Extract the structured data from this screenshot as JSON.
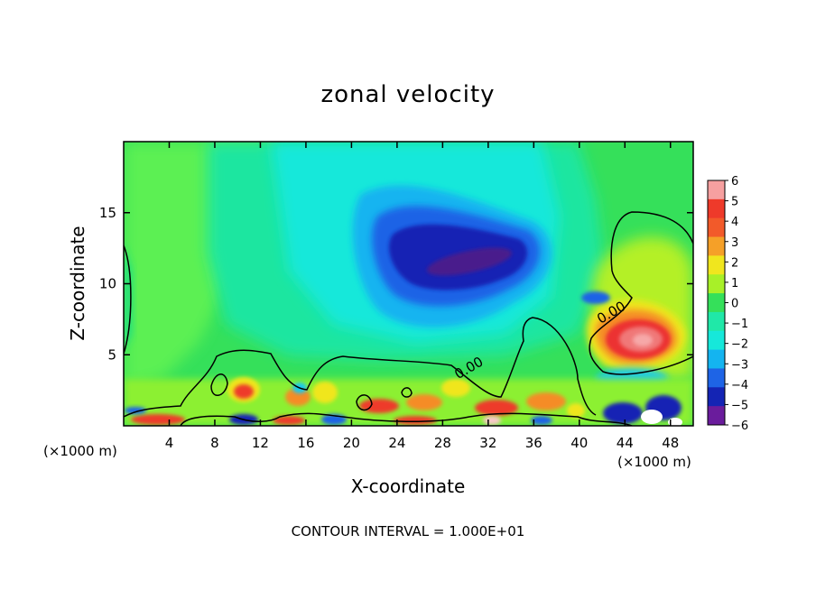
{
  "chart_data": {
    "type": "heatmap",
    "title": "zonal velocity",
    "xlabel": "X-coordinate",
    "ylabel": "Z-coordinate",
    "x_unit_left": "(×1000 m)",
    "x_unit_right": "(×1000 m)",
    "footer": "CONTOUR INTERVAL = 1.000E+01",
    "x_ticks": [
      4,
      8,
      12,
      16,
      20,
      24,
      28,
      32,
      36,
      40,
      44,
      48
    ],
    "y_ticks": [
      5,
      10,
      15
    ],
    "xlim": [
      0,
      50
    ],
    "ylim": [
      0,
      20
    ],
    "colorbar": {
      "labels": [
        "6",
        "5",
        "4",
        "3",
        "2",
        "1",
        "0",
        "−1",
        "−2",
        "−3",
        "−4",
        "−5",
        "−6"
      ],
      "range": [
        -6,
        6
      ]
    },
    "contour_labels": [
      {
        "text": "0.00",
        "x": 30.5,
        "y": 3.8
      },
      {
        "text": "0.00",
        "x": 43.0,
        "y": 7.7
      }
    ],
    "features": [
      {
        "desc": "negative core",
        "x": 30.5,
        "y": 11.2,
        "value": -5.5
      },
      {
        "desc": "positive core",
        "x": 45.0,
        "y": 6.0,
        "value": 5.5
      }
    ]
  }
}
